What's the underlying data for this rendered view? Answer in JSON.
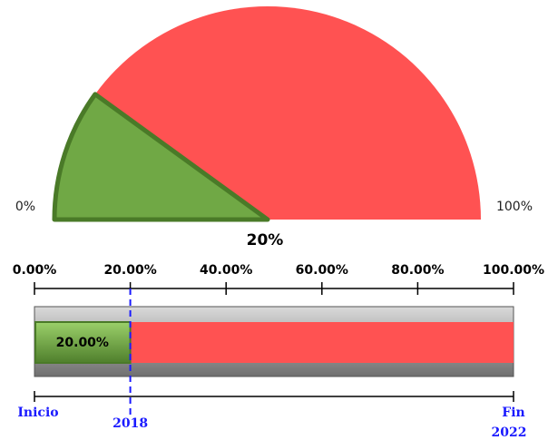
{
  "chart_data": [
    {
      "type": "gauge",
      "value": 20,
      "value_label": "20%",
      "ylim": [
        0,
        100
      ],
      "yticks": [
        {
          "value": 0,
          "label": "0%"
        },
        {
          "value": 100,
          "label": "100%"
        }
      ],
      "colors": {
        "done": "#70a845",
        "remaining": "#ff5252"
      }
    },
    {
      "type": "progress",
      "values": [
        20
      ],
      "value_labels": [
        "20.00%"
      ],
      "xlim": [
        0,
        100
      ],
      "xticks": [
        {
          "value": 0,
          "label": "0.00%"
        },
        {
          "value": 20,
          "label": "20.00%"
        },
        {
          "value": 40,
          "label": "40.00%"
        },
        {
          "value": 60,
          "label": "60.00%"
        },
        {
          "value": 80,
          "label": "80.00%"
        },
        {
          "value": 100,
          "label": "100.00%"
        }
      ],
      "colors": {
        "done": "#70a845",
        "remaining": "#ff5252",
        "frame": "#a6a6a6",
        "marker": "#1a1aff"
      },
      "timeline": {
        "start_label": "Inicio",
        "marker_label": "2018",
        "end_label": "Fin",
        "end_year": "2022"
      }
    }
  ]
}
